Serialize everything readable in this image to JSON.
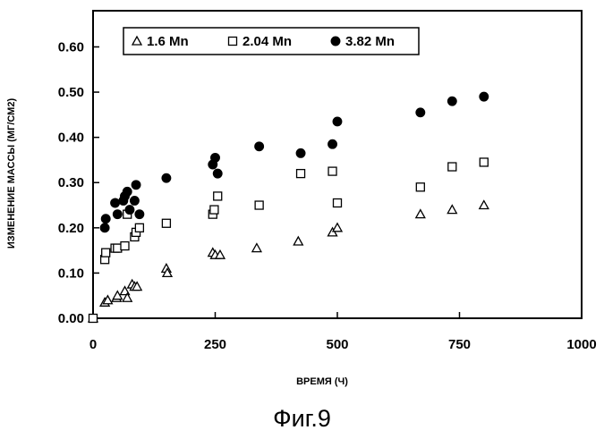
{
  "figure_caption": "Фиг.9",
  "chart_data": {
    "type": "scatter",
    "xlabel": "ВРЕМЯ (Ч)",
    "ylabel": "ИЗМЕНЕНИЕ МАССЫ (МГ/СМ2)",
    "xlim": [
      0,
      1000
    ],
    "ylim": [
      0,
      0.68
    ],
    "x_ticks": [
      0,
      250,
      500,
      750,
      1000
    ],
    "x_tick_labels": [
      "0",
      "250",
      "500",
      "750",
      "1000"
    ],
    "y_ticks": [
      0,
      0.1,
      0.2,
      0.3,
      0.4,
      0.5,
      0.6
    ],
    "y_tick_labels": [
      "0.00",
      "0.10",
      "0.20",
      "0.30",
      "0.40",
      "0.50",
      "0.60"
    ],
    "grid": false,
    "legend_position": "top-left, inside",
    "series": [
      {
        "name": "1.6 Mn",
        "marker": "open-triangle",
        "color": "#000000",
        "x": [
          0,
          24,
          30,
          48,
          50,
          65,
          70,
          80,
          85,
          90,
          150,
          152,
          245,
          250,
          260,
          335,
          420,
          490,
          500,
          670,
          735,
          800
        ],
        "y": [
          0.0,
          0.035,
          0.04,
          0.045,
          0.05,
          0.06,
          0.045,
          0.075,
          0.07,
          0.07,
          0.11,
          0.1,
          0.145,
          0.14,
          0.14,
          0.155,
          0.17,
          0.19,
          0.2,
          0.23,
          0.24,
          0.25
        ]
      },
      {
        "name": "2.04 Mn",
        "marker": "open-square",
        "color": "#000000",
        "x": [
          0,
          24,
          26,
          45,
          50,
          65,
          70,
          85,
          88,
          95,
          150,
          245,
          248,
          255,
          340,
          425,
          490,
          500,
          670,
          735,
          800
        ],
        "y": [
          0.0,
          0.13,
          0.145,
          0.155,
          0.155,
          0.16,
          0.23,
          0.18,
          0.19,
          0.2,
          0.21,
          0.23,
          0.24,
          0.27,
          0.25,
          0.32,
          0.325,
          0.255,
          0.29,
          0.335,
          0.345
        ]
      },
      {
        "name": "3.82 Mn",
        "marker": "filled-circle",
        "color": "#000000",
        "x": [
          24,
          26,
          45,
          50,
          62,
          65,
          70,
          75,
          85,
          88,
          95,
          150,
          245,
          250,
          255,
          340,
          425,
          490,
          500,
          670,
          735,
          800
        ],
        "y": [
          0.2,
          0.22,
          0.255,
          0.23,
          0.26,
          0.27,
          0.28,
          0.24,
          0.26,
          0.295,
          0.23,
          0.31,
          0.34,
          0.355,
          0.32,
          0.38,
          0.365,
          0.385,
          0.435,
          0.455,
          0.48,
          0.49
        ]
      }
    ]
  }
}
